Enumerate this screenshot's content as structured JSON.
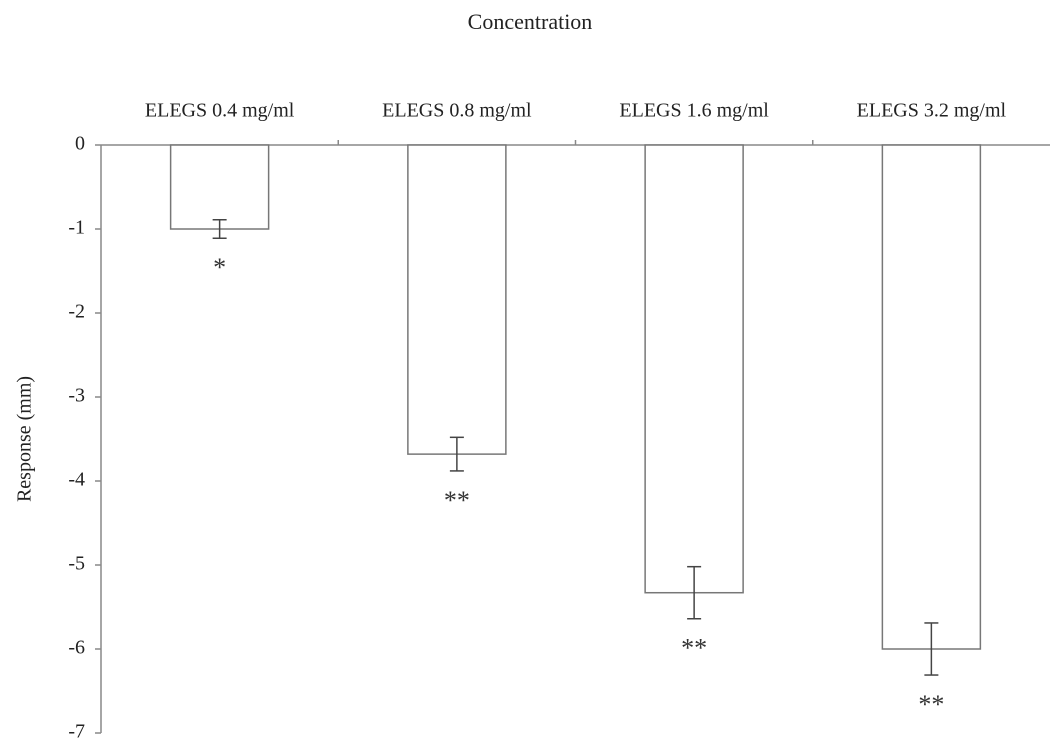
{
  "chart_data": {
    "type": "bar",
    "title": "Concentration",
    "y_label": "Response (mm)",
    "categories": [
      "ELEGS 0.4 mg/ml",
      "ELEGS 0.8 mg/ml",
      "ELEGS 1.6 mg/ml",
      "ELEGS 3.2 mg/ml"
    ],
    "values": [
      -1.0,
      -3.68,
      -5.33,
      -6.0
    ],
    "errors": [
      0.11,
      0.2,
      0.31,
      0.31
    ],
    "annotations": [
      "*",
      "**",
      "**",
      "**"
    ],
    "color": "#ffffff",
    "ylim": [
      -7,
      0
    ],
    "yticks": [
      0,
      -1,
      -2,
      -3,
      -4,
      -5,
      -6,
      -7
    ],
    "grid": false
  }
}
